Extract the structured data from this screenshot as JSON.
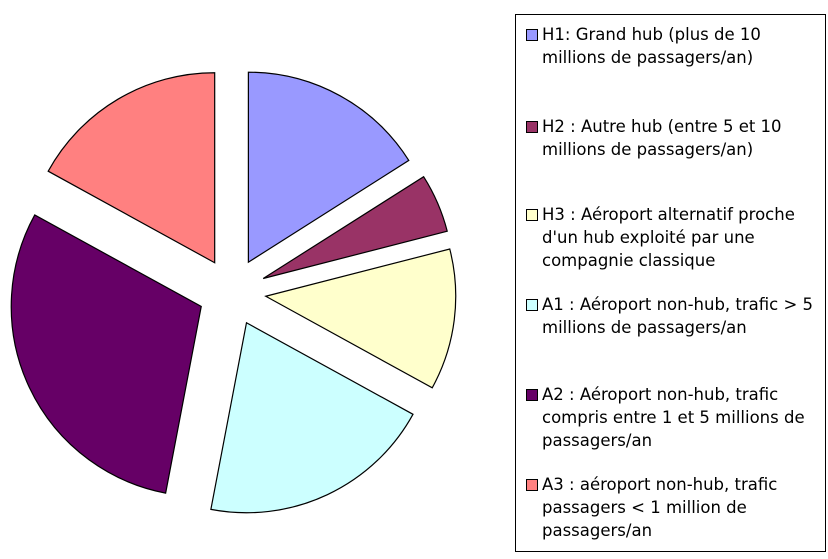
{
  "chart_data": {
    "type": "pie",
    "categories": [
      "H1: Grand hub (plus de 10 millions de passagers/an)",
      "H2 : Autre hub (entre 5 et 10 millions de passagers/an)",
      "H3 : Aéroport alternatif proche d'un hub exploité par une compagnie classique",
      "A1 : Aéroport non-hub, trafic > 5 millions de passagers/an",
      "A2 : Aéroport non-hub, trafic compris entre 1 et 5 millions de passagers/an",
      "A3 : aéroport non-hub, trafic passagers < 1 million de passagers/an"
    ],
    "values": [
      16,
      5,
      12,
      20,
      30,
      17
    ],
    "colors": [
      "#9999ff",
      "#993366",
      "#ffffcc",
      "#ccffff",
      "#660066",
      "#ff8080"
    ],
    "legend": "right"
  }
}
